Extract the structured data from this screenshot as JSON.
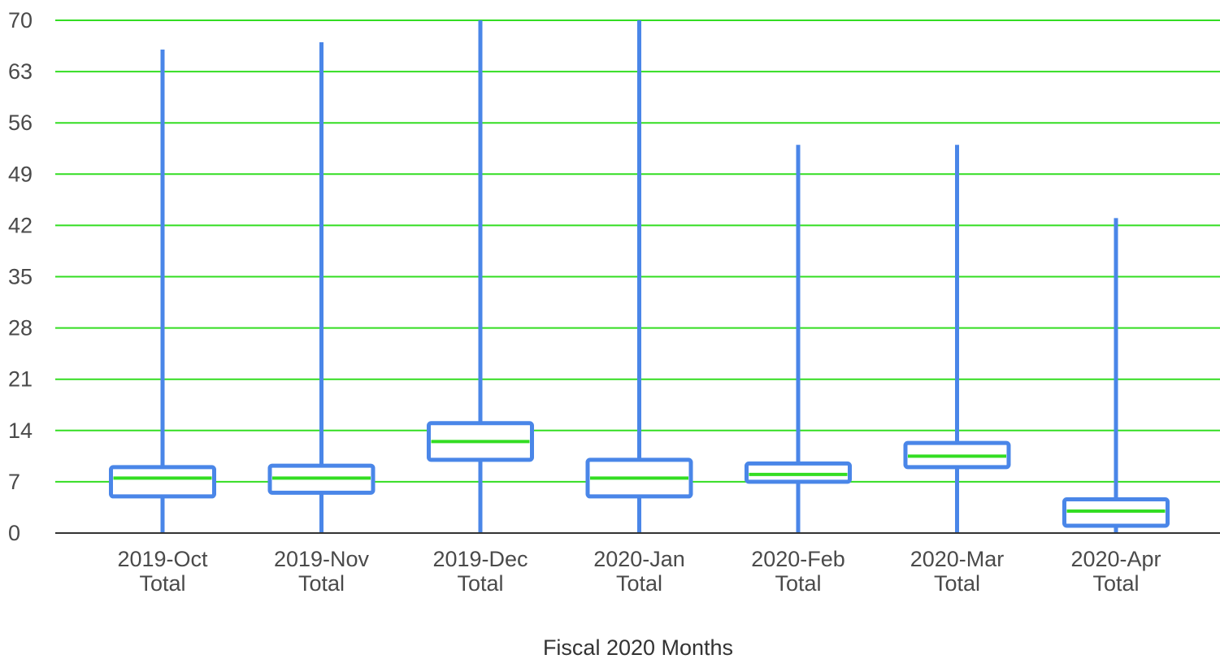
{
  "chart_data": {
    "type": "boxplot",
    "title": "",
    "xlabel": "Fiscal 2020 Months",
    "ylabel": "",
    "ylim": [
      0,
      70
    ],
    "yticks": [
      0,
      7,
      14,
      21,
      28,
      35,
      42,
      49,
      56,
      63,
      70
    ],
    "grid": true,
    "grid_color": "#33dd22",
    "series_color": "#4a86e8",
    "categories": [
      [
        "2019-Oct",
        "Total"
      ],
      [
        "2019-Nov",
        "Total"
      ],
      [
        "2019-Dec",
        "Total"
      ],
      [
        "2020-Jan",
        "Total"
      ],
      [
        "2020-Feb",
        "Total"
      ],
      [
        "2020-Mar",
        "Total"
      ],
      [
        "2020-Apr",
        "Total"
      ]
    ],
    "boxes": [
      {
        "min": 0,
        "q1": 5,
        "median": 7.5,
        "q3": 9,
        "max": 66
      },
      {
        "min": 0,
        "q1": 5.5,
        "median": 7.5,
        "q3": 9.2,
        "max": 67
      },
      {
        "min": 0,
        "q1": 10,
        "median": 12.5,
        "q3": 15,
        "max": 70
      },
      {
        "min": 0,
        "q1": 5,
        "median": 7.5,
        "q3": 10,
        "max": 70
      },
      {
        "min": 0,
        "q1": 7,
        "median": 8,
        "q3": 9.5,
        "max": 53
      },
      {
        "min": 0,
        "q1": 9,
        "median": 10.5,
        "q3": 12.3,
        "max": 53
      },
      {
        "min": 0,
        "q1": 1,
        "median": 3,
        "q3": 4.6,
        "max": 43
      }
    ]
  }
}
